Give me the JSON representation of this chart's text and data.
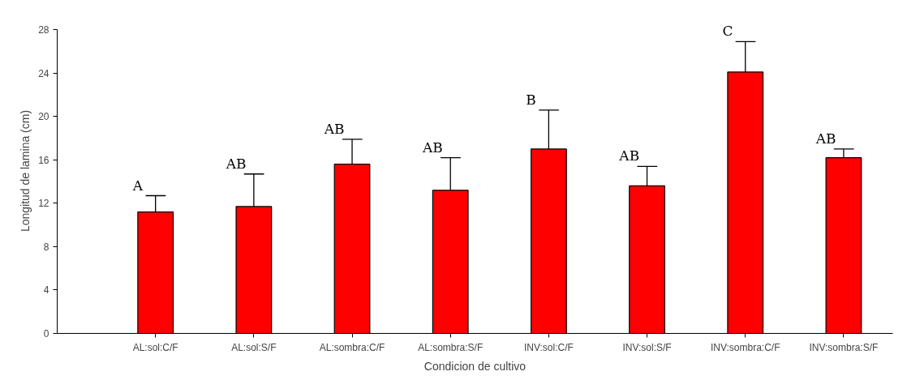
{
  "chart_data": {
    "type": "bar",
    "xlabel": "Condicion de cultivo",
    "ylabel": "Longitud de lamina (cm)",
    "categories": [
      "AL:sol:C/F",
      "AL:sol:S/F",
      "AL:sombra:C/F",
      "AL:sombra:S/F",
      "INV:sol:C/F",
      "INV:sol:S/F",
      "INV:sombra:C/F",
      "INV:sombra:S/F"
    ],
    "values": [
      11.2,
      11.7,
      15.6,
      13.2,
      17.0,
      13.6,
      24.1,
      16.2
    ],
    "errors": [
      [
        11.2,
        12.7
      ],
      [
        11.7,
        14.7
      ],
      [
        15.6,
        17.9
      ],
      [
        13.2,
        16.2
      ],
      [
        17.0,
        20.6
      ],
      [
        13.6,
        15.4
      ],
      [
        24.1,
        26.9
      ],
      [
        16.2,
        17.0
      ]
    ],
    "color": "#ff0000",
    "ylim": [
      0,
      28
    ],
    "yticks": [
      0,
      4,
      8,
      12,
      16,
      20,
      24,
      28
    ],
    "grid": false,
    "annotations": [
      "A",
      "AB",
      "AB",
      "AB",
      "B",
      "AB",
      "C",
      "AB"
    ]
  }
}
